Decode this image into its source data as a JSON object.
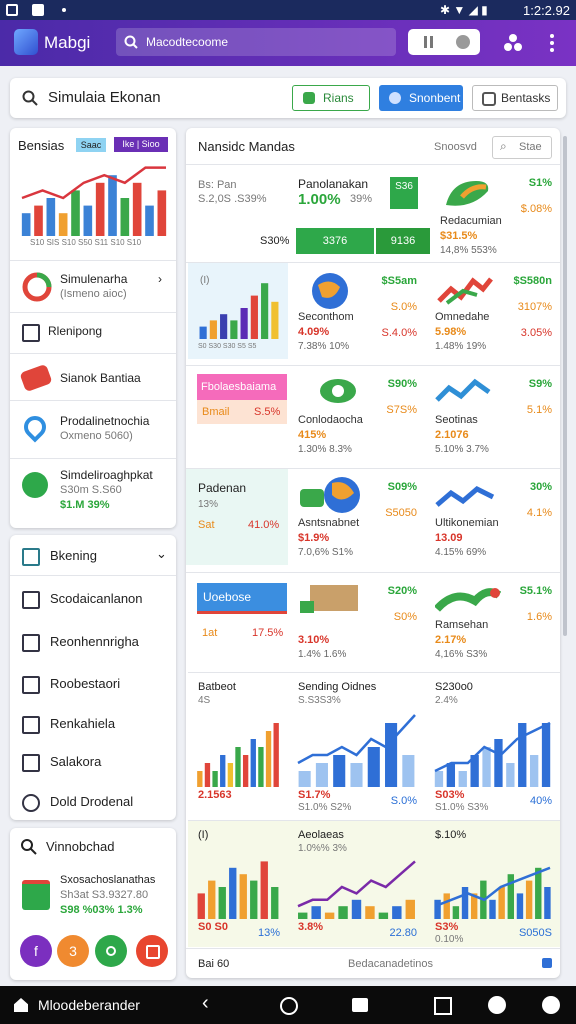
{
  "status_bar": {
    "time": "1:2:2.92"
  },
  "app_bar": {
    "title": "Mabgi",
    "search": "Macodtecoome"
  },
  "toolbar": {
    "search": "Simulaia Ekonan",
    "buttons": [
      "Rians",
      "Snonbent",
      "Bentasks"
    ]
  },
  "sidebar": {
    "title": "Bensias",
    "chips": [
      "Saac",
      "Ike | Sioo"
    ],
    "chart": {
      "ylim": [
        0,
        10
      ],
      "bars": {
        "values": [
          3,
          4,
          5,
          3,
          6,
          4,
          7,
          8,
          5,
          7,
          4,
          6
        ],
        "colors": [
          "#3b82d6",
          "#e0453a",
          "#3b82d6",
          "#f0a030",
          "#3aa84a",
          "#3b82d6",
          "#e0453a",
          "#3b82d6",
          "#3aa84a",
          "#e0453a",
          "#3b82d6",
          "#e0453a"
        ]
      },
      "line": {
        "values": [
          5,
          6,
          5,
          7,
          8,
          7,
          9,
          9
        ],
        "color": "#d9363e"
      }
    },
    "caption": "S10 SIS S10 S50 S11 S10 S10",
    "items": [
      {
        "title": "Simulenarha",
        "sub": "(Ismeno aioc)"
      },
      {
        "title": "Rlenipong"
      },
      {
        "title": "Sianok Bantiaa"
      },
      {
        "title": "Prodalinetnochia",
        "sub": "Oxmeno 5060)"
      },
      {
        "title": "Simdeliroaghpkat",
        "sub": "S30m S.S60",
        "value": "$1.M 39%"
      }
    ]
  },
  "nav": {
    "header": "Bkening",
    "items": [
      "Scodaicanlanon",
      "Reonhennrigha",
      "Roobestaori",
      "Renkahiela",
      "Salakora",
      "Dold Drodenal"
    ]
  },
  "panel": {
    "title": "Vinnobchad",
    "item": {
      "title": "Sxosachoslanathas",
      "sub": "Sh3at S3.9327.80",
      "stats": "S98 %03%  1.3%"
    },
    "buttons": [
      "f",
      "3"
    ]
  },
  "main": {
    "title": "Nansidc Mandas",
    "filter": "Snoosvd",
    "search": "Stae",
    "summary": {
      "label": "Bs: Pan",
      "sub": "S.2,0S .S39%",
      "title": "Panolanakan",
      "value": "1.00%",
      "value2": "39%",
      "badge": "S36",
      "total": "S30%",
      "bars": [
        "3376",
        "9136"
      ]
    },
    "tiles": [
      {
        "title": "Redacumian",
        "value": "$31.5%",
        "sub": "14,8% 553%",
        "stats": [
          "S1%",
          "$.08%"
        ]
      },
      {
        "title": "Seconthom",
        "value": "4.09%",
        "sub": "7.38%  10%",
        "stats": [
          "$S5am",
          "S.0%",
          "S.4.0%"
        ]
      },
      {
        "title": "Omnedahe",
        "value": "5.98%",
        "sub": "1.48%  19%",
        "stats": [
          "$S580n",
          "3107%",
          "3.05%"
        ]
      },
      {
        "title": "Conlodaocha",
        "value": "415%",
        "sub": "1.30%  8.3%",
        "stats": [
          "S90%",
          "S7S%"
        ]
      },
      {
        "title": "Seotinas",
        "value": "2.1076",
        "sub": "5.10% 3.7%",
        "stats": [
          "S9%",
          "5.1%"
        ]
      },
      {
        "title": "Asntsnabnet",
        "value": "$1.9%",
        "sub": "7.0,6%  S1%",
        "stats": [
          "S09%",
          "S5050"
        ]
      },
      {
        "title": "Ultikonemian",
        "value": "13.09",
        "sub": "4.15% 69%",
        "stats": [
          "30%",
          "4.1%"
        ]
      },
      {
        "value": "3.10%",
        "sub": "1.4%  1.6%",
        "stats": [
          "S20%",
          "S0%"
        ]
      },
      {
        "title": "Ramsehan",
        "value": "2.17%",
        "sub": "4,16%  S3%",
        "stats": [
          "S5.1%",
          "1.6%"
        ]
      }
    ],
    "chart_tile": {
      "label": "(I)",
      "caption": "S0  S30  S30  S5  S5",
      "chart": {
        "ylim": [
          0,
          10
        ],
        "bars": {
          "values": [
            2,
            3,
            4,
            3,
            5,
            7,
            9,
            6
          ],
          "colors": [
            "#2f6fd6",
            "#f0a030",
            "#3b3fb0",
            "#3aa84a",
            "#5b2bb5",
            "#e0453a",
            "#3aa84a",
            "#f0c030"
          ]
        }
      }
    },
    "left_cells": [
      {
        "header": "Fbolaesbaiama",
        "label": "Bmail",
        "value": "S.5%"
      },
      {
        "header": "Padenan",
        "sub": "13%",
        "label": "Sat",
        "value": "41.0%"
      },
      {
        "header": "Uoebose",
        "label": "1at",
        "value": "17.5%"
      }
    ],
    "charts": [
      {
        "title": "Batbeot",
        "value": "2.1563",
        "sub": "4S",
        "chart": {
          "ylim": [
            0,
            10
          ],
          "bars": {
            "values": [
              2,
              3,
              2,
              4,
              3,
              5,
              4,
              6,
              5,
              7,
              8
            ],
            "colors": [
              "#f0a030",
              "#e0453a",
              "#3aa84a",
              "#2f6fd6",
              "#f0c030",
              "#3aa84a",
              "#e0453a",
              "#2f6fd6",
              "#3aa84a",
              "#f0a030",
              "#e0453a"
            ]
          }
        }
      },
      {
        "title": "Sending Oidnes",
        "sub": "S.S3S3%",
        "value": "S1.7%",
        "value2": "S1.0%  S2%",
        "side": "S.0%",
        "chart": {
          "ylim": [
            0,
            10
          ],
          "bars": {
            "values": [
              2,
              3,
              4,
              3,
              5,
              8,
              4
            ],
            "colors": [
              "#9ec3f0",
              "#9ec3f0",
              "#2f6fd6",
              "#9ec3f0",
              "#2f6fd6",
              "#2f6fd6",
              "#9ec3f0"
            ]
          },
          "line": {
            "values": [
              3,
              4,
              4,
              5,
              4,
              6,
              5,
              7,
              9
            ],
            "color": "#2f6fd6"
          }
        }
      },
      {
        "title": "S230o0",
        "sub": "2.4%",
        "value": "S03%",
        "value2": "S1.0%  S3%",
        "side": "40%",
        "chart": {
          "ylim": [
            0,
            10
          ],
          "bars": {
            "values": [
              2,
              3,
              2,
              4,
              5,
              6,
              3,
              8,
              4,
              8
            ],
            "colors": [
              "#9ec3f0",
              "#2f6fd6",
              "#9ec3f0",
              "#2f6fd6",
              "#9ec3f0",
              "#2f6fd6",
              "#9ec3f0",
              "#2f6fd6",
              "#9ec3f0",
              "#2f6fd6"
            ]
          },
          "line": {
            "values": [
              2,
              3,
              3,
              5,
              4,
              6,
              7,
              8
            ],
            "color": "#2f6fd6"
          }
        }
      },
      {
        "title": "(I)",
        "value": "S0 S0",
        "side": "13%",
        "chart": {
          "ylim": [
            0,
            10
          ],
          "bars": {
            "values": [
              4,
              6,
              5,
              8,
              7,
              6,
              9,
              5
            ],
            "colors": [
              "#e0453a",
              "#f0a030",
              "#3aa84a",
              "#2f6fd6",
              "#f0a030",
              "#3aa84a",
              "#e0453a",
              "#3aa84a"
            ]
          }
        }
      },
      {
        "title": "Aeolaeas",
        "sub": "1.0%%  3%",
        "value": "3.8%",
        "side": "22.80",
        "chart": {
          "ylim": [
            0,
            10
          ],
          "bars": {
            "values": [
              1,
              2,
              1,
              2,
              3,
              2,
              1,
              2,
              3
            ],
            "colors": [
              "#3aa84a",
              "#2f6fd6",
              "#f0a030",
              "#3aa84a",
              "#2f6fd6",
              "#f0a030",
              "#3aa84a",
              "#2f6fd6",
              "#f0a030"
            ]
          },
          "line": {
            "values": [
              2,
              3,
              3,
              5,
              4,
              6,
              5,
              7,
              9
            ],
            "color": "#7a2aa8"
          }
        }
      },
      {
        "title": "$.10%",
        "value": "S3%",
        "value2": "0.10%",
        "side": "S050S",
        "chart": {
          "ylim": [
            0,
            10
          ],
          "bars": {
            "values": [
              3,
              4,
              2,
              5,
              4,
              6,
              3,
              5,
              7,
              4,
              6,
              8,
              5
            ],
            "colors": [
              "#2f6fd6",
              "#f0a030",
              "#3aa84a",
              "#2f6fd6",
              "#f0a030",
              "#3aa84a",
              "#2f6fd6",
              "#f0a030",
              "#3aa84a",
              "#2f6fd6",
              "#f0a030",
              "#3aa84a",
              "#2f6fd6"
            ]
          },
          "line": {
            "values": [
              2,
              3,
              4,
              3,
              5,
              6,
              7,
              8
            ],
            "color": "#2f6fd6"
          }
        }
      }
    ],
    "footer": {
      "left": "Bai 60",
      "center": "Bedacanadetinos"
    }
  },
  "bottom_bar": {
    "label": "Mloodeberander"
  }
}
